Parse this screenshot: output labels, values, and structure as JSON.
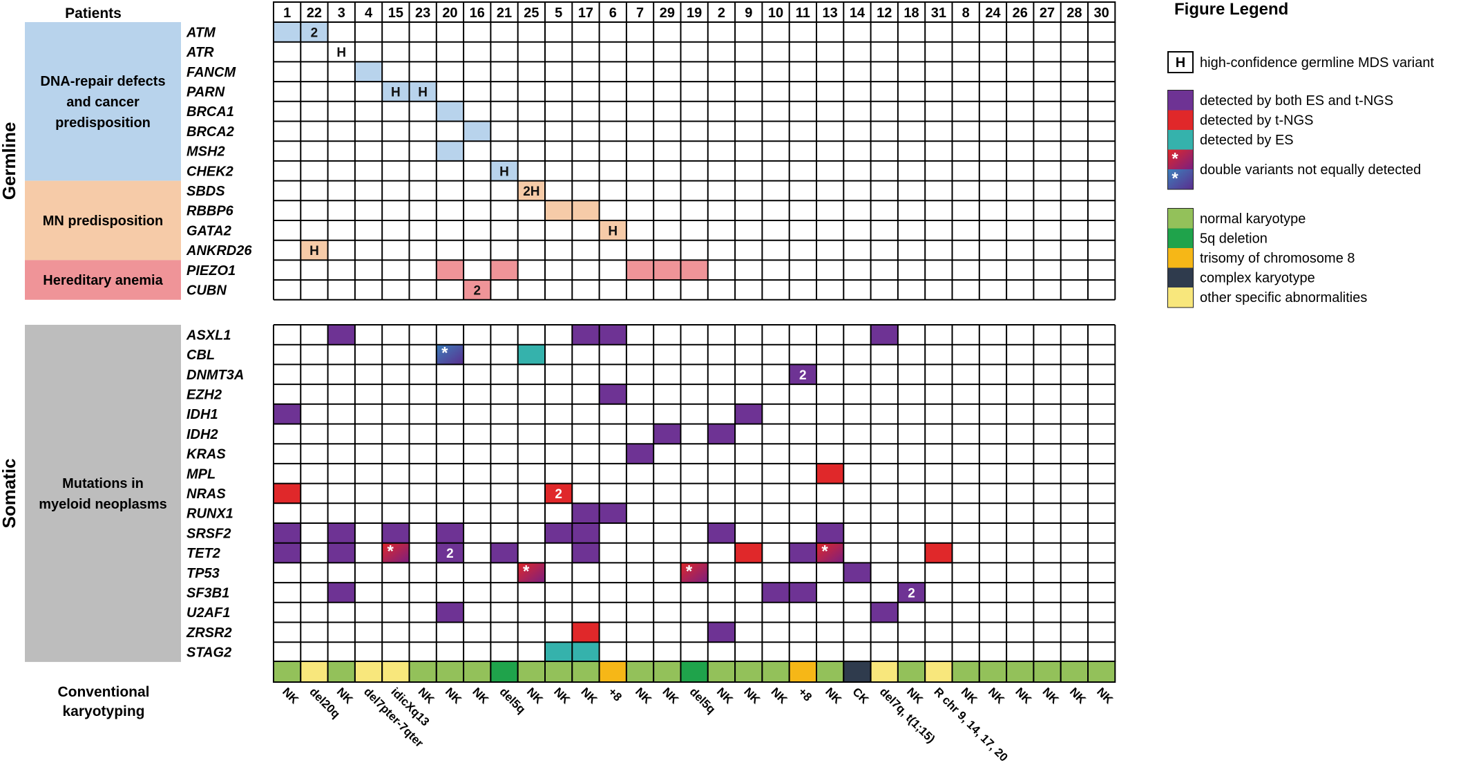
{
  "chart_data": {
    "type": "heatmap",
    "title": "",
    "patients_label": "Patients",
    "patients": [
      "1",
      "22",
      "3",
      "4",
      "15",
      "23",
      "20",
      "16",
      "21",
      "25",
      "5",
      "17",
      "6",
      "7",
      "29",
      "19",
      "2",
      "9",
      "10",
      "11",
      "13",
      "14",
      "12",
      "18",
      "31",
      "8",
      "24",
      "26",
      "27",
      "28",
      "30"
    ],
    "sections": [
      {
        "name": "Germline",
        "groups": [
          {
            "name": "DNA-repair defects and cancer predisposition",
            "color": "#b8d3ec",
            "lines": [
              "DNA-repair defects",
              "and cancer",
              "predisposition"
            ],
            "genes": [
              "ATM",
              "ATR",
              "FANCM",
              "PARN",
              "BRCA1",
              "BRCA2",
              "MSH2",
              "CHEK2"
            ]
          },
          {
            "name": "MN predisposition",
            "color": "#f6cba8",
            "lines": [
              "MN predisposition"
            ],
            "genes": [
              "SBDS",
              "RBBP6",
              "GATA2",
              "ANKRD26"
            ]
          },
          {
            "name": "Hereditary anemia",
            "color": "#ef9498",
            "lines": [
              "Hereditary anemia"
            ],
            "genes": [
              "PIEZO1",
              "CUBN"
            ]
          }
        ],
        "cells": [
          {
            "gene": "ATM",
            "patient": "1",
            "type": "dna"
          },
          {
            "gene": "ATM",
            "patient": "22",
            "type": "dna",
            "label": "2"
          },
          {
            "gene": "ATR",
            "patient": "3",
            "type": "white",
            "label": "H"
          },
          {
            "gene": "FANCM",
            "patient": "4",
            "type": "dna"
          },
          {
            "gene": "PARN",
            "patient": "15",
            "type": "dna",
            "label": "H"
          },
          {
            "gene": "PARN",
            "patient": "23",
            "type": "dna",
            "label": "H"
          },
          {
            "gene": "BRCA1",
            "patient": "20",
            "type": "dna"
          },
          {
            "gene": "BRCA2",
            "patient": "16",
            "type": "dna"
          },
          {
            "gene": "MSH2",
            "patient": "20",
            "type": "dna"
          },
          {
            "gene": "CHEK2",
            "patient": "21",
            "type": "dna",
            "label": "H"
          },
          {
            "gene": "SBDS",
            "patient": "25",
            "type": "mn",
            "label": "2H"
          },
          {
            "gene": "RBBP6",
            "patient": "5",
            "type": "mn"
          },
          {
            "gene": "RBBP6",
            "patient": "17",
            "type": "mn"
          },
          {
            "gene": "GATA2",
            "patient": "6",
            "type": "mn",
            "label": "H"
          },
          {
            "gene": "ANKRD26",
            "patient": "22",
            "type": "mn",
            "label": "H"
          },
          {
            "gene": "PIEZO1",
            "patient": "20",
            "type": "anemia"
          },
          {
            "gene": "PIEZO1",
            "patient": "21",
            "type": "anemia"
          },
          {
            "gene": "PIEZO1",
            "patient": "7",
            "type": "anemia"
          },
          {
            "gene": "PIEZO1",
            "patient": "29",
            "type": "anemia"
          },
          {
            "gene": "PIEZO1",
            "patient": "19",
            "type": "anemia"
          },
          {
            "gene": "CUBN",
            "patient": "16",
            "type": "anemia",
            "label": "2"
          }
        ]
      },
      {
        "name": "Somatic",
        "groups": [
          {
            "name": "Mutations in myeloid neoplasms",
            "color": "#bdbdbd",
            "lines": [
              "Mutations in",
              "myeloid neoplasms"
            ],
            "genes": [
              "ASXL1",
              "CBL",
              "DNMT3A",
              "EZH2",
              "IDH1",
              "IDH2",
              "KRAS",
              "MPL",
              "NRAS",
              "RUNX1",
              "SRSF2",
              "TET2",
              "TP53",
              "SF3B1",
              "U2AF1",
              "ZRSR2",
              "STAG2"
            ]
          }
        ],
        "cells": [
          {
            "gene": "ASXL1",
            "patient": "3",
            "type": "both"
          },
          {
            "gene": "ASXL1",
            "patient": "17",
            "type": "both"
          },
          {
            "gene": "ASXL1",
            "patient": "6",
            "type": "both"
          },
          {
            "gene": "ASXL1",
            "patient": "12",
            "type": "both"
          },
          {
            "gene": "CBL",
            "patient": "20",
            "type": "double_blue",
            "label": "*"
          },
          {
            "gene": "CBL",
            "patient": "25",
            "type": "es"
          },
          {
            "gene": "DNMT3A",
            "patient": "11",
            "type": "both",
            "label": "2"
          },
          {
            "gene": "EZH2",
            "patient": "6",
            "type": "both"
          },
          {
            "gene": "IDH1",
            "patient": "1",
            "type": "both"
          },
          {
            "gene": "IDH1",
            "patient": "9",
            "type": "both"
          },
          {
            "gene": "IDH2",
            "patient": "29",
            "type": "both"
          },
          {
            "gene": "IDH2",
            "patient": "2",
            "type": "both"
          },
          {
            "gene": "KRAS",
            "patient": "7",
            "type": "both"
          },
          {
            "gene": "MPL",
            "patient": "13",
            "type": "tngs"
          },
          {
            "gene": "NRAS",
            "patient": "1",
            "type": "tngs"
          },
          {
            "gene": "NRAS",
            "patient": "5",
            "type": "tngs",
            "label": "2"
          },
          {
            "gene": "RUNX1",
            "patient": "17",
            "type": "both"
          },
          {
            "gene": "RUNX1",
            "patient": "6",
            "type": "both"
          },
          {
            "gene": "SRSF2",
            "patient": "1",
            "type": "both"
          },
          {
            "gene": "SRSF2",
            "patient": "3",
            "type": "both"
          },
          {
            "gene": "SRSF2",
            "patient": "15",
            "type": "both"
          },
          {
            "gene": "SRSF2",
            "patient": "20",
            "type": "both"
          },
          {
            "gene": "SRSF2",
            "patient": "5",
            "type": "both"
          },
          {
            "gene": "SRSF2",
            "patient": "17",
            "type": "both"
          },
          {
            "gene": "SRSF2",
            "patient": "2",
            "type": "both"
          },
          {
            "gene": "SRSF2",
            "patient": "13",
            "type": "both"
          },
          {
            "gene": "TET2",
            "patient": "1",
            "type": "both"
          },
          {
            "gene": "TET2",
            "patient": "3",
            "type": "both"
          },
          {
            "gene": "TET2",
            "patient": "15",
            "type": "double_red",
            "label": "*"
          },
          {
            "gene": "TET2",
            "patient": "20",
            "type": "both",
            "label": "2"
          },
          {
            "gene": "TET2",
            "patient": "21",
            "type": "both"
          },
          {
            "gene": "TET2",
            "patient": "17",
            "type": "both"
          },
          {
            "gene": "TET2",
            "patient": "9",
            "type": "tngs"
          },
          {
            "gene": "TET2",
            "patient": "11",
            "type": "both"
          },
          {
            "gene": "TET2",
            "patient": "13",
            "type": "double_red",
            "label": "*"
          },
          {
            "gene": "TET2",
            "patient": "31",
            "type": "tngs"
          },
          {
            "gene": "TP53",
            "patient": "25",
            "type": "double_red",
            "label": "*"
          },
          {
            "gene": "TP53",
            "patient": "19",
            "type": "double_red",
            "label": "*"
          },
          {
            "gene": "TP53",
            "patient": "14",
            "type": "both"
          },
          {
            "gene": "SF3B1",
            "patient": "3",
            "type": "both"
          },
          {
            "gene": "SF3B1",
            "patient": "10",
            "type": "both"
          },
          {
            "gene": "SF3B1",
            "patient": "11",
            "type": "both"
          },
          {
            "gene": "SF3B1",
            "patient": "18",
            "type": "both",
            "label": "2"
          },
          {
            "gene": "U2AF1",
            "patient": "20",
            "type": "both"
          },
          {
            "gene": "U2AF1",
            "patient": "12",
            "type": "both"
          },
          {
            "gene": "ZRSR2",
            "patient": "17",
            "type": "tngs"
          },
          {
            "gene": "ZRSR2",
            "patient": "2",
            "type": "both"
          },
          {
            "gene": "STAG2",
            "patient": "5",
            "type": "es"
          },
          {
            "gene": "STAG2",
            "patient": "17",
            "type": "es"
          }
        ]
      }
    ],
    "karyotype": {
      "label_lines": [
        "Conventional",
        "karyotyping"
      ],
      "values": [
        "NK",
        "del20q",
        "NK",
        "del7pter-7qter",
        "idicXq13",
        "NK",
        "NK",
        "NK",
        "del5q",
        "NK",
        "NK",
        "NK",
        "+8",
        "NK",
        "NK",
        "del5q",
        "NK",
        "NK",
        "NK",
        "+8",
        "NK",
        "CK",
        "del7q, t(1;15)",
        "NK",
        "R chr 9, 14, 17, 20",
        "NK",
        "NK",
        "NK",
        "NK",
        "NK",
        "NK"
      ],
      "categories": [
        "normal",
        "del20q_other",
        "normal",
        "other",
        "other",
        "normal",
        "normal",
        "normal",
        "5q",
        "normal",
        "normal",
        "normal",
        "trisomy8",
        "normal",
        "normal",
        "5q",
        "normal",
        "normal",
        "normal",
        "trisomy8",
        "normal",
        "complex",
        "other",
        "normal",
        "other",
        "normal",
        "normal",
        "normal",
        "normal",
        "normal",
        "normal"
      ]
    },
    "colors": {
      "dna": "#b8d3ec",
      "mn": "#f6cba8",
      "anemia": "#ef9498",
      "both": "#6e3394",
      "tngs": "#e0282a",
      "es": "#35b2ac",
      "double_red_from": "#e0282a",
      "double_red_to": "#7a1f80",
      "double_blue_from": "#3d7fbb",
      "double_blue_to": "#5a2e8e",
      "normal": "#93c15a",
      "5q": "#1fa34b",
      "trisomy8": "#f6b717",
      "complex": "#2f3b4d",
      "other": "#f8e77c",
      "del20q_other": "#f8e77c"
    },
    "legend": {
      "title": "Figure Legend",
      "h_item": {
        "symbol": "H",
        "label": "high-confidence germline MDS variant"
      },
      "detection_items": [
        {
          "type": "both",
          "label": "detected by both ES and t-NGS"
        },
        {
          "type": "tngs",
          "label": "detected by t-NGS"
        },
        {
          "type": "es",
          "label": "detected by ES"
        }
      ],
      "double_item": {
        "label": "double variants not equally detected",
        "symbol": "*"
      },
      "karyotype_items": [
        {
          "type": "normal",
          "label": "normal karyotype"
        },
        {
          "type": "5q",
          "label": "5q deletion"
        },
        {
          "type": "trisomy8",
          "label": "trisomy of chromosome 8"
        },
        {
          "type": "complex",
          "label": "complex karyotype"
        },
        {
          "type": "other",
          "label": "other specific abnormalities"
        }
      ]
    }
  }
}
